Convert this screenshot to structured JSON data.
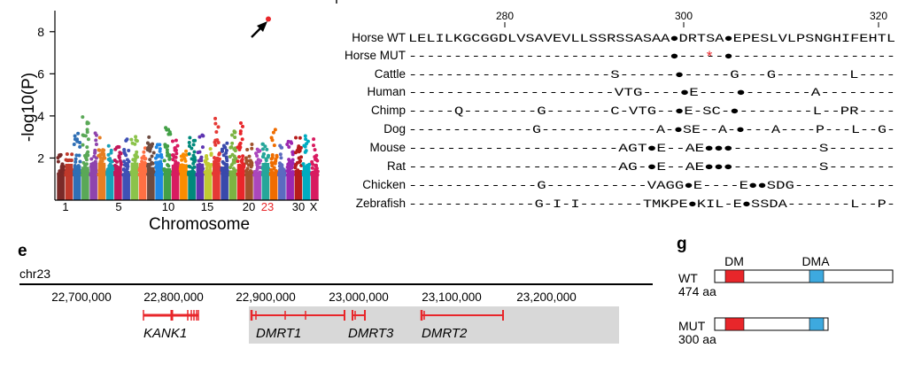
{
  "manhattan": {
    "ylabel": "-log10(P)",
    "xlabel": "Chromosome",
    "ytick_labels": [
      "2",
      "4",
      "6",
      "8"
    ],
    "xtick_labels": [
      "1",
      "5",
      "10",
      "15",
      "20",
      "23",
      "30",
      "X"
    ],
    "highlight_color": "#e8262a",
    "highlight_label": "23",
    "chart_data": {
      "type": "scatter",
      "ylim": [
        0,
        9
      ],
      "yticks": [
        2,
        4,
        6,
        8
      ],
      "top_hit": {
        "chromosome": "23",
        "value": 8.6
      },
      "chromosome_peaks": [
        2.4,
        2.2,
        3.2,
        4.0,
        3.4,
        3.0,
        2.8,
        2.6,
        2.9,
        3.3,
        2.6,
        3.1,
        2.7,
        3.5,
        2.9,
        2.5,
        3.0,
        3.2,
        2.6,
        4.1,
        2.9,
        3.3,
        8.6,
        2.7,
        2.5,
        2.8,
        3.4,
        2.6,
        2.8,
        3.0,
        3.1,
        2.9
      ]
    }
  },
  "alignment": {
    "ruler_labels": [
      "280",
      "300",
      "320"
    ],
    "rows": [
      {
        "name": "Horse WT",
        "seq": "LELILKGCGGDLVSAVEVLLSSRSSASAA●DRTSA●EPESLVLPSNGHIFEHTL",
        "mut_star": false
      },
      {
        "name": "Horse MUT",
        "seq": "-----------------------------●-----●------------------",
        "mut_star": true
      },
      {
        "name": "Cattle",
        "seq": "----------------------S------●-----G---G--------L----",
        "mut_star": false
      },
      {
        "name": "Human",
        "seq": "----------------------VTG----●E----●-------A--------",
        "mut_star": false
      },
      {
        "name": "Chimp",
        "seq": "-----Q--------G-------C-VTG--●E-SC-●--------L--PR----",
        "mut_star": false
      },
      {
        "name": "Dog",
        "seq": "--------------G-------------A-●SE--A-●---A----P---L--G-",
        "mut_star": false
      },
      {
        "name": "Mouse",
        "seq": "----------------------AGT●E--AE●●●---------S-------",
        "mut_star": false
      },
      {
        "name": "Rat",
        "seq": "----------------------AG-●E--AE●●●---------S-------",
        "mut_star": false
      },
      {
        "name": "Chicken",
        "seq": "--------------G-----------VAGG●E----E●●SDG-----------",
        "mut_star": false
      },
      {
        "name": "Zebrafish",
        "seq": "--------------G-I-I-------TMKPE●KIL-E●SSDA-------L--P-",
        "mut_star": false
      }
    ],
    "star_glyph": "*",
    "star_color": "#e8262a"
  },
  "panel_e": {
    "label": "e",
    "chrom": "chr23",
    "coords": [
      "22,700,000",
      "22,800,000",
      "22,900,000",
      "23,000,000",
      "23,100,000",
      "23,200,000"
    ],
    "genes": [
      {
        "name": "KANK1"
      },
      {
        "name": "DMRT1"
      },
      {
        "name": "DMRT3"
      },
      {
        "name": "DMRT2"
      }
    ],
    "gene_color": "#e8262a",
    "region_color": "#d8d8d8"
  },
  "panel_g": {
    "label": "g",
    "domains": [
      "DM",
      "DMA"
    ],
    "dm_color": "#e8262a",
    "dma_color": "#3da9df",
    "proteins": [
      {
        "name": "WT",
        "length": "474 aa",
        "aa": 474
      },
      {
        "name": "MUT",
        "length": "300 aa",
        "aa": 300
      }
    ]
  }
}
